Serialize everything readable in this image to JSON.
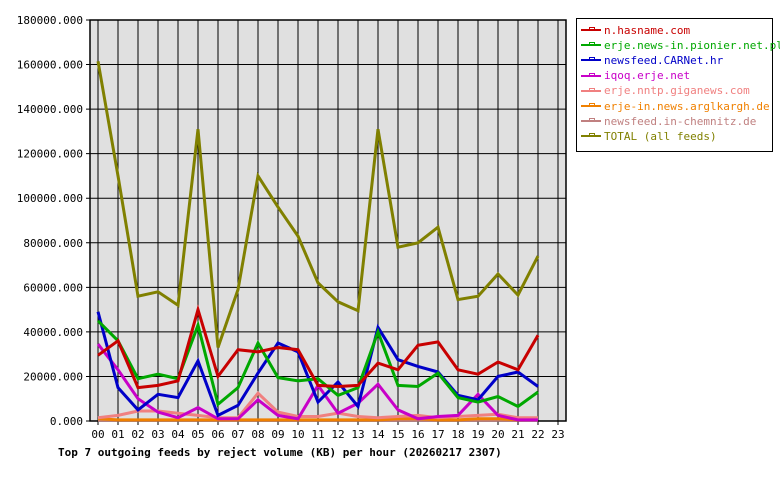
{
  "chart_data": {
    "type": "line",
    "title": "Top 7 outgoing feeds by reject volume (KB) per hour (20260217 2307)",
    "xlabel": "",
    "ylabel": "",
    "ylim": [
      0,
      180000
    ],
    "grid": true,
    "legend_position": "right",
    "y_ticks": [
      "0.000",
      "20000.000",
      "40000.000",
      "60000.000",
      "80000.000",
      "100000.000",
      "120000.000",
      "140000.000",
      "160000.000",
      "180000.000"
    ],
    "categories": [
      "00",
      "01",
      "02",
      "03",
      "04",
      "05",
      "06",
      "07",
      "08",
      "09",
      "10",
      "11",
      "12",
      "13",
      "14",
      "15",
      "16",
      "17",
      "18",
      "19",
      "20",
      "21",
      "22",
      "23"
    ],
    "series": [
      {
        "name": "n.hasname.com",
        "color": "#c80000",
        "values": [
          29500,
          36000,
          15000,
          16000,
          18000,
          50000,
          20000,
          32000,
          31000,
          33000,
          32000,
          16000,
          15500,
          16000,
          26000,
          23000,
          34000,
          35500,
          23000,
          21000,
          26500,
          23000,
          38500
        ]
      },
      {
        "name": "erje.news-in.pionier.net.pl",
        "color": "#00a800",
        "values": [
          45000,
          36000,
          19000,
          21000,
          19000,
          43000,
          7500,
          15000,
          35000,
          19500,
          18000,
          19000,
          11500,
          15000,
          40000,
          16000,
          15500,
          21500,
          10500,
          8500,
          11000,
          6500,
          13000
        ]
      },
      {
        "name": "newsfeed.CARNet.hr",
        "color": "#0000c8",
        "values": [
          49000,
          15000,
          5000,
          12000,
          10500,
          27000,
          2500,
          7000,
          21500,
          35000,
          31000,
          8500,
          17500,
          6500,
          42000,
          27500,
          24500,
          22000,
          11500,
          9500,
          20000,
          22000,
          15500
        ]
      },
      {
        "name": "iqoq.erje.net",
        "color": "#c800c8",
        "values": [
          34500,
          23000,
          10000,
          4000,
          1500,
          6000,
          1000,
          1000,
          9500,
          2500,
          1000,
          16000,
          3500,
          8000,
          16500,
          5000,
          1000,
          2000,
          2500,
          12000,
          2500,
          500,
          500
        ]
      },
      {
        "name": "erje.nntp.giganews.com",
        "color": "#f08080",
        "values": [
          1500,
          2500,
          4500,
          4500,
          3500,
          2500,
          1500,
          1500,
          12500,
          4000,
          2000,
          2000,
          3500,
          2000,
          1500,
          2000,
          2500,
          1500,
          2000,
          2500,
          3000,
          1500,
          1500
        ]
      },
      {
        "name": "erje-in.news.arglkargh.de",
        "color": "#f08000",
        "values": [
          1000,
          500,
          500,
          500,
          500,
          500,
          500,
          500,
          500,
          500,
          500,
          500,
          500,
          500,
          500,
          1000,
          1000,
          500,
          500,
          1000,
          1000,
          500,
          1000
        ]
      },
      {
        "name": "newsfeed.in-chemnitz.de",
        "color": "#c08080",
        "values": [
          300,
          300,
          300,
          300,
          300,
          300,
          300,
          300,
          300,
          300,
          300,
          300,
          300,
          300,
          300,
          300,
          300,
          300,
          300,
          300,
          300,
          300,
          300
        ]
      },
      {
        "name": "TOTAL (all feeds)",
        "color": "#808000",
        "values": [
          161500,
          110000,
          56000,
          58000,
          52000,
          131000,
          33000,
          59000,
          110000,
          96000,
          83000,
          62000,
          53500,
          49500,
          131000,
          78000,
          80000,
          87000,
          54500,
          56000,
          66000,
          56500,
          74000
        ]
      }
    ]
  },
  "colors": {
    "plot_background": "#e0e0e0",
    "grid": "#000000"
  }
}
